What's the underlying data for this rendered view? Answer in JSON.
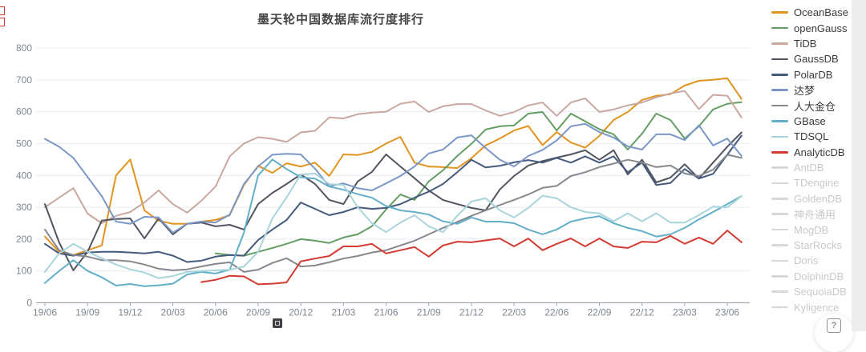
{
  "page": {
    "help_icon_glyph": "?"
  },
  "legend": {
    "inactive_items": [
      "AntDB",
      "TDengine",
      "GoldenDB",
      "神舟通用",
      "MogDB",
      "StarRocks",
      "Doris",
      "DolphinDB",
      "SequoiaDB",
      "Kyligence"
    ],
    "inactive_line_color": "#d8d8d8"
  },
  "chart_data": {
    "type": "line",
    "title": "墨天轮中国数据库流行度排行",
    "xlabel": "",
    "ylabel": "",
    "ylim": [
      0,
      800
    ],
    "y_ticks": [
      0,
      100,
      200,
      300,
      400,
      500,
      600,
      700,
      800
    ],
    "grid": true,
    "legend_position": "right",
    "x_start_month": "19/06",
    "x_tick_labels": [
      "19/06",
      "19/09",
      "19/12",
      "20/03",
      "20/06",
      "20/09",
      "20/12",
      "21/03",
      "21/06",
      "21/09",
      "21/12",
      "22/03",
      "22/06",
      "22/09",
      "22/12",
      "23/03",
      "23/06"
    ],
    "x_tick_every": 3,
    "n_points": 50,
    "series": [
      {
        "name": "OceanBase",
        "color": "#e2941f",
        "start": 0,
        "values": [
          208,
          160,
          150,
          165,
          180,
          400,
          450,
          290,
          258,
          248,
          248,
          255,
          260,
          275,
          370,
          430,
          408,
          438,
          428,
          440,
          398,
          466,
          464,
          474,
          500,
          521,
          440,
          428,
          426,
          423,
          454,
          494,
          516,
          541,
          555,
          495,
          536,
          503,
          487,
          524,
          574,
          599,
          637,
          650,
          655,
          682,
          697,
          700,
          705,
          640
        ]
      },
      {
        "name": "openGauss",
        "color": "#649e64",
        "start": 12,
        "values": [
          155,
          150,
          148,
          160,
          172,
          185,
          200,
          195,
          188,
          205,
          215,
          240,
          293,
          340,
          323,
          381,
          416,
          461,
          499,
          544,
          554,
          557,
          594,
          599,
          541,
          594,
          570,
          545,
          529,
          481,
          531,
          594,
          574,
          516,
          554,
          607,
          625,
          630
        ]
      },
      {
        "name": "TiDB",
        "color": "#c9a8a0",
        "start": 0,
        "values": [
          300,
          330,
          360,
          280,
          250,
          273,
          285,
          315,
          353,
          310,
          283,
          320,
          365,
          460,
          500,
          520,
          515,
          505,
          535,
          540,
          582,
          579,
          592,
          597,
          600,
          625,
          632,
          599,
          617,
          624,
          624,
          604,
          587,
          599,
          620,
          629,
          587,
          629,
          642,
          599,
          607,
          620,
          629,
          645,
          657,
          665,
          608,
          653,
          650,
          582
        ]
      },
      {
        "name": "GaussDB",
        "color": "#515560",
        "start": 0,
        "values": [
          310,
          190,
          102,
          160,
          258,
          263,
          265,
          202,
          265,
          215,
          248,
          252,
          240,
          245,
          230,
          310,
          345,
          373,
          403,
          373,
          323,
          310,
          381,
          411,
          466,
          428,
          391,
          353,
          323,
          310,
          298,
          290,
          356,
          398,
          431,
          445,
          456,
          466,
          479,
          449,
          479,
          403,
          449,
          378,
          393,
          435,
          390,
          440,
          490,
          535
        ]
      },
      {
        "name": "PolarDB",
        "color": "#465a7c",
        "start": 0,
        "values": [
          185,
          155,
          148,
          158,
          160,
          160,
          158,
          155,
          160,
          148,
          128,
          132,
          145,
          150,
          148,
          197,
          230,
          260,
          315,
          295,
          275,
          285,
          300,
          295,
          298,
          310,
          330,
          349,
          373,
          410,
          449,
          425,
          430,
          441,
          448,
          440,
          455,
          440,
          460,
          440,
          460,
          410,
          440,
          370,
          376,
          420,
          390,
          405,
          465,
          525
        ]
      },
      {
        "name": "达梦",
        "color": "#7a97c7",
        "start": 0,
        "values": [
          515,
          490,
          455,
          395,
          335,
          255,
          248,
          270,
          268,
          220,
          248,
          255,
          252,
          277,
          373,
          428,
          465,
          468,
          466,
          421,
          366,
          375,
          360,
          353,
          375,
          398,
          428,
          469,
          481,
          519,
          526,
          486,
          449,
          428,
          461,
          480,
          510,
          554,
          562,
          536,
          519,
          491,
          481,
          529,
          529,
          511,
          557,
          494,
          516,
          461
        ]
      },
      {
        "name": "人大金仓",
        "color": "#85888e",
        "start": 0,
        "values": [
          230,
          165,
          150,
          145,
          134,
          134,
          130,
          120,
          107,
          102,
          105,
          114,
          122,
          127,
          97,
          104,
          125,
          140,
          114,
          117,
          127,
          139,
          147,
          158,
          165,
          180,
          195,
          215,
          235,
          254,
          273,
          290,
          307,
          323,
          340,
          361,
          367,
          398,
          410,
          426,
          437,
          449,
          440,
          426,
          431,
          406,
          398,
          418,
          465,
          455
        ]
      },
      {
        "name": "GBase",
        "color": "#63afc9",
        "start": 0,
        "values": [
          62,
          100,
          134,
          100,
          80,
          54,
          59,
          52,
          55,
          60,
          89,
          97,
          92,
          104,
          220,
          400,
          450,
          420,
          394,
          390,
          365,
          355,
          341,
          330,
          304,
          290,
          285,
          277,
          256,
          248,
          268,
          255,
          255,
          250,
          230,
          215,
          230,
          255,
          265,
          272,
          250,
          235,
          225,
          208,
          215,
          235,
          262,
          285,
          310,
          335
        ]
      },
      {
        "name": "TDSQL",
        "color": "#a8d5db",
        "start": 0,
        "values": [
          97,
          155,
          185,
          160,
          140,
          120,
          105,
          95,
          77,
          84,
          97,
          100,
          102,
          104,
          114,
          160,
          265,
          331,
          403,
          406,
          373,
          370,
          300,
          250,
          222,
          252,
          275,
          240,
          222,
          273,
          318,
          328,
          290,
          268,
          298,
          336,
          328,
          300,
          285,
          281,
          256,
          281,
          256,
          281,
          252,
          252,
          275,
          302,
          300,
          335
        ]
      },
      {
        "name": "AnalyticDB",
        "color": "#d23b31",
        "start": 11,
        "values": [
          65,
          72,
          85,
          83,
          58,
          60,
          64,
          130,
          139,
          147,
          177,
          177,
          185,
          155,
          165,
          175,
          145,
          180,
          192,
          190,
          196,
          202,
          177,
          202,
          165,
          185,
          202,
          177,
          202,
          177,
          172,
          192,
          190,
          210,
          185,
          205,
          185,
          227,
          190
        ]
      }
    ]
  }
}
